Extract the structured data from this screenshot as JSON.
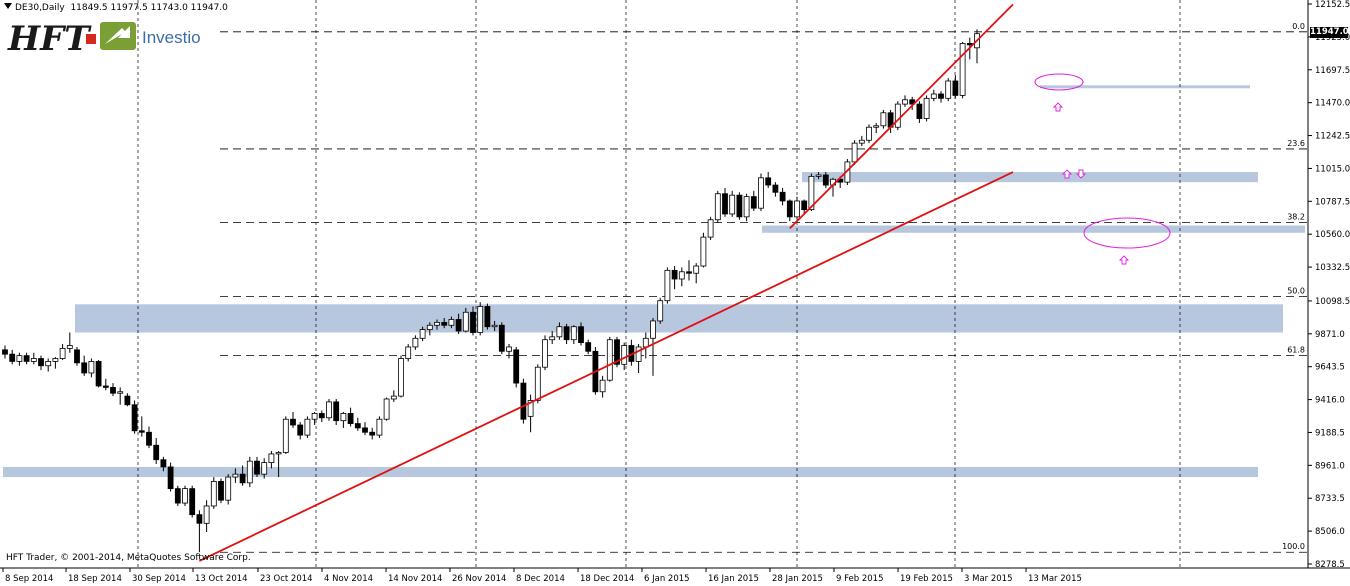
{
  "header": {
    "symbol": "DE30,Daily",
    "ohlc": "11849.5 11977.5 11743.0 11947.0"
  },
  "logo": {
    "brand": "HFT",
    "name": "Investio"
  },
  "copyright": "HFT Trader, © 2001-2014, MetaQuotes Software Corp.",
  "current_price": "11947.0",
  "colors": {
    "zone": "#b7c7de",
    "trendline": "#e01010",
    "ellipse": "#e020e0",
    "grid": "#000000",
    "bull_body": "#ffffff",
    "bear_body": "#000000"
  },
  "chart_data": {
    "type": "candlestick",
    "instrument": "DE30",
    "timeframe": "Daily",
    "ylim": [
      8280,
      12150
    ],
    "y_ticks": [
      "12152.5",
      "11925.0",
      "11697.5",
      "11470.0",
      "11242.5",
      "11015.0",
      "10787.5",
      "10560.0",
      "10332.5",
      "10098.5",
      "9871.0",
      "9643.5",
      "9416.0",
      "9188.5",
      "8961.0",
      "8733.5",
      "8506.0",
      "8278.5"
    ],
    "x_ticks": [
      "8 Sep 2014",
      "18 Sep 2014",
      "30 Sep 2014",
      "13 Oct 2014",
      "23 Oct 2014",
      "4 Nov 2014",
      "14 Nov 2014",
      "26 Nov 2014",
      "8 Dec 2014",
      "18 Dec 2014",
      "6 Jan 2015",
      "16 Jan 2015",
      "28 Jan 2015",
      "9 Feb 2015",
      "19 Feb 2015",
      "3 Mar 2015",
      "13 Mar 2015"
    ],
    "fib_levels": [
      {
        "label": "0.0",
        "price": 11960
      },
      {
        "label": "23.6",
        "price": 11150
      },
      {
        "label": "38.2",
        "price": 10640
      },
      {
        "label": "50.0",
        "price": 10130
      },
      {
        "label": "61.8",
        "price": 9720
      },
      {
        "label": "100.0",
        "price": 8360
      }
    ],
    "zones": [
      {
        "from": 9880,
        "to": 10075
      },
      {
        "from": 10920,
        "to": 10990
      },
      {
        "from": 10570,
        "to": 10620
      },
      {
        "from": 8880,
        "to": 8950
      },
      {
        "from": 11570,
        "to": 11590
      }
    ],
    "candles": [
      {
        "d": "2014-09-08",
        "o": 9760,
        "h": 9790,
        "l": 9700,
        "c": 9730
      },
      {
        "d": "2014-09-09",
        "o": 9730,
        "h": 9760,
        "l": 9660,
        "c": 9680
      },
      {
        "d": "2014-09-10",
        "o": 9680,
        "h": 9740,
        "l": 9650,
        "c": 9720
      },
      {
        "d": "2014-09-11",
        "o": 9720,
        "h": 9740,
        "l": 9660,
        "c": 9680
      },
      {
        "d": "2014-09-12",
        "o": 9680,
        "h": 9740,
        "l": 9660,
        "c": 9700
      },
      {
        "d": "2014-09-15",
        "o": 9700,
        "h": 9720,
        "l": 9620,
        "c": 9650
      },
      {
        "d": "2014-09-16",
        "o": 9650,
        "h": 9700,
        "l": 9610,
        "c": 9680
      },
      {
        "d": "2014-09-17",
        "o": 9680,
        "h": 9710,
        "l": 9630,
        "c": 9700
      },
      {
        "d": "2014-09-18",
        "o": 9700,
        "h": 9800,
        "l": 9690,
        "c": 9770
      },
      {
        "d": "2014-09-19",
        "o": 9770,
        "h": 9880,
        "l": 9740,
        "c": 9790
      },
      {
        "d": "2014-09-22",
        "o": 9760,
        "h": 9780,
        "l": 9650,
        "c": 9670
      },
      {
        "d": "2014-09-23",
        "o": 9670,
        "h": 9720,
        "l": 9580,
        "c": 9600
      },
      {
        "d": "2014-09-24",
        "o": 9600,
        "h": 9700,
        "l": 9570,
        "c": 9680
      },
      {
        "d": "2014-09-25",
        "o": 9680,
        "h": 9690,
        "l": 9500,
        "c": 9510
      },
      {
        "d": "2014-09-26",
        "o": 9510,
        "h": 9560,
        "l": 9480,
        "c": 9500
      },
      {
        "d": "2014-09-29",
        "o": 9500,
        "h": 9530,
        "l": 9440,
        "c": 9460
      },
      {
        "d": "2014-09-30",
        "o": 9460,
        "h": 9500,
        "l": 9380,
        "c": 9470
      },
      {
        "d": "2014-10-01",
        "o": 9440,
        "h": 9460,
        "l": 9370,
        "c": 9380
      },
      {
        "d": "2014-10-02",
        "o": 9380,
        "h": 9410,
        "l": 9180,
        "c": 9200
      },
      {
        "d": "2014-10-03",
        "o": 9200,
        "h": 9300,
        "l": 9160,
        "c": 9190
      },
      {
        "d": "2014-10-06",
        "o": 9190,
        "h": 9230,
        "l": 9080,
        "c": 9100
      },
      {
        "d": "2014-10-07",
        "o": 9100,
        "h": 9150,
        "l": 8970,
        "c": 9000
      },
      {
        "d": "2014-10-08",
        "o": 9000,
        "h": 9020,
        "l": 8920,
        "c": 8950
      },
      {
        "d": "2014-10-09",
        "o": 8950,
        "h": 8980,
        "l": 8780,
        "c": 8800
      },
      {
        "d": "2014-10-10",
        "o": 8800,
        "h": 8820,
        "l": 8680,
        "c": 8700
      },
      {
        "d": "2014-10-13",
        "o": 8700,
        "h": 8820,
        "l": 8680,
        "c": 8800
      },
      {
        "d": "2014-10-14",
        "o": 8800,
        "h": 8820,
        "l": 8600,
        "c": 8620
      },
      {
        "d": "2014-10-15",
        "o": 8620,
        "h": 8650,
        "l": 8360,
        "c": 8560
      },
      {
        "d": "2014-10-16",
        "o": 8560,
        "h": 8720,
        "l": 8500,
        "c": 8680
      },
      {
        "d": "2014-10-17",
        "o": 8680,
        "h": 8880,
        "l": 8660,
        "c": 8850
      },
      {
        "d": "2014-10-20",
        "o": 8850,
        "h": 8870,
        "l": 8700,
        "c": 8720
      },
      {
        "d": "2014-10-21",
        "o": 8720,
        "h": 8900,
        "l": 8690,
        "c": 8880
      },
      {
        "d": "2014-10-22",
        "o": 8880,
        "h": 8940,
        "l": 8840,
        "c": 8900
      },
      {
        "d": "2014-10-23",
        "o": 8900,
        "h": 8960,
        "l": 8820,
        "c": 8840
      },
      {
        "d": "2014-10-24",
        "o": 8840,
        "h": 9020,
        "l": 8810,
        "c": 8990
      },
      {
        "d": "2014-10-27",
        "o": 8990,
        "h": 9020,
        "l": 8880,
        "c": 8900
      },
      {
        "d": "2014-10-28",
        "o": 8900,
        "h": 9010,
        "l": 8870,
        "c": 8980
      },
      {
        "d": "2014-10-29",
        "o": 8980,
        "h": 9060,
        "l": 8940,
        "c": 9040
      },
      {
        "d": "2014-10-30",
        "o": 9040,
        "h": 9060,
        "l": 8880,
        "c": 9050
      },
      {
        "d": "2014-10-31",
        "o": 9050,
        "h": 9300,
        "l": 9040,
        "c": 9280
      },
      {
        "d": "2014-11-03",
        "o": 9280,
        "h": 9330,
        "l": 9220,
        "c": 9240
      },
      {
        "d": "2014-11-04",
        "o": 9240,
        "h": 9260,
        "l": 9140,
        "c": 9170
      },
      {
        "d": "2014-11-05",
        "o": 9170,
        "h": 9300,
        "l": 9150,
        "c": 9280
      },
      {
        "d": "2014-11-06",
        "o": 9280,
        "h": 9330,
        "l": 9240,
        "c": 9320
      },
      {
        "d": "2014-11-07",
        "o": 9320,
        "h": 9340,
        "l": 9260,
        "c": 9290
      },
      {
        "d": "2014-11-10",
        "o": 9290,
        "h": 9420,
        "l": 9270,
        "c": 9400
      },
      {
        "d": "2014-11-11",
        "o": 9400,
        "h": 9420,
        "l": 9240,
        "c": 9270
      },
      {
        "d": "2014-11-12",
        "o": 9270,
        "h": 9330,
        "l": 9220,
        "c": 9320
      },
      {
        "d": "2014-11-13",
        "o": 9320,
        "h": 9360,
        "l": 9230,
        "c": 9250
      },
      {
        "d": "2014-11-14",
        "o": 9250,
        "h": 9290,
        "l": 9200,
        "c": 9220
      },
      {
        "d": "2014-11-17",
        "o": 9220,
        "h": 9260,
        "l": 9170,
        "c": 9190
      },
      {
        "d": "2014-11-18",
        "o": 9190,
        "h": 9220,
        "l": 9140,
        "c": 9170
      },
      {
        "d": "2014-11-19",
        "o": 9170,
        "h": 9300,
        "l": 9150,
        "c": 9280
      },
      {
        "d": "2014-11-20",
        "o": 9280,
        "h": 9430,
        "l": 9270,
        "c": 9420
      },
      {
        "d": "2014-11-21",
        "o": 9420,
        "h": 9480,
        "l": 9400,
        "c": 9440
      },
      {
        "d": "2014-11-24",
        "o": 9440,
        "h": 9720,
        "l": 9430,
        "c": 9700
      },
      {
        "d": "2014-11-25",
        "o": 9700,
        "h": 9800,
        "l": 9680,
        "c": 9780
      },
      {
        "d": "2014-11-26",
        "o": 9780,
        "h": 9860,
        "l": 9760,
        "c": 9840
      },
      {
        "d": "2014-11-27",
        "o": 9840,
        "h": 9920,
        "l": 9820,
        "c": 9900
      },
      {
        "d": "2014-11-28",
        "o": 9900,
        "h": 9950,
        "l": 9860,
        "c": 9930
      },
      {
        "d": "2014-12-01",
        "o": 9930,
        "h": 9970,
        "l": 9900,
        "c": 9950
      },
      {
        "d": "2014-12-02",
        "o": 9950,
        "h": 9980,
        "l": 9910,
        "c": 9930
      },
      {
        "d": "2014-12-03",
        "o": 9930,
        "h": 9990,
        "l": 9910,
        "c": 9970
      },
      {
        "d": "2014-12-04",
        "o": 9970,
        "h": 10010,
        "l": 9870,
        "c": 9890
      },
      {
        "d": "2014-12-05",
        "o": 9890,
        "h": 10050,
        "l": 9880,
        "c": 10020
      },
      {
        "d": "2014-12-08",
        "o": 10020,
        "h": 10060,
        "l": 9860,
        "c": 9880
      },
      {
        "d": "2014-12-09",
        "o": 9880,
        "h": 10090,
        "l": 9860,
        "c": 10060
      },
      {
        "d": "2014-12-10",
        "o": 10060,
        "h": 10080,
        "l": 9900,
        "c": 9920
      },
      {
        "d": "2014-12-11",
        "o": 9920,
        "h": 9960,
        "l": 9890,
        "c": 9930
      },
      {
        "d": "2014-12-12",
        "o": 9930,
        "h": 9950,
        "l": 9730,
        "c": 9750
      },
      {
        "d": "2014-12-15",
        "o": 9750,
        "h": 9800,
        "l": 9700,
        "c": 9780
      },
      {
        "d": "2014-12-16",
        "o": 9760,
        "h": 9780,
        "l": 9500,
        "c": 9530
      },
      {
        "d": "2014-12-17",
        "o": 9530,
        "h": 9560,
        "l": 9250,
        "c": 9280
      },
      {
        "d": "2014-12-18",
        "o": 9300,
        "h": 9450,
        "l": 9190,
        "c": 9410
      },
      {
        "d": "2014-12-19",
        "o": 9410,
        "h": 9660,
        "l": 9390,
        "c": 9640
      },
      {
        "d": "2014-12-22",
        "o": 9640,
        "h": 9860,
        "l": 9620,
        "c": 9830
      },
      {
        "d": "2014-12-23",
        "o": 9830,
        "h": 9890,
        "l": 9800,
        "c": 9850
      },
      {
        "d": "2014-12-24",
        "o": 9850,
        "h": 9950,
        "l": 9830,
        "c": 9920
      },
      {
        "d": "2014-12-29",
        "o": 9920,
        "h": 9940,
        "l": 9800,
        "c": 9830
      },
      {
        "d": "2014-12-30",
        "o": 9830,
        "h": 9930,
        "l": 9800,
        "c": 9920
      },
      {
        "d": "2015-01-02",
        "o": 9920,
        "h": 9950,
        "l": 9790,
        "c": 9810
      },
      {
        "d": "2015-01-05",
        "o": 9810,
        "h": 9830,
        "l": 9730,
        "c": 9750
      },
      {
        "d": "2015-01-06",
        "o": 9750,
        "h": 9780,
        "l": 9450,
        "c": 9470
      },
      {
        "d": "2015-01-07",
        "o": 9470,
        "h": 9580,
        "l": 9430,
        "c": 9550
      },
      {
        "d": "2015-01-08",
        "o": 9550,
        "h": 9850,
        "l": 9540,
        "c": 9830
      },
      {
        "d": "2015-01-09",
        "o": 9830,
        "h": 9850,
        "l": 9640,
        "c": 9660
      },
      {
        "d": "2015-01-12",
        "o": 9660,
        "h": 9810,
        "l": 9620,
        "c": 9790
      },
      {
        "d": "2015-01-13",
        "o": 9790,
        "h": 9830,
        "l": 9650,
        "c": 9680
      },
      {
        "d": "2015-01-14",
        "o": 9680,
        "h": 9800,
        "l": 9600,
        "c": 9780
      },
      {
        "d": "2015-01-15",
        "o": 9780,
        "h": 9880,
        "l": 9700,
        "c": 9840
      },
      {
        "d": "2015-01-16",
        "o": 9840,
        "h": 9980,
        "l": 9580,
        "c": 9960
      },
      {
        "d": "2015-01-19",
        "o": 9960,
        "h": 10120,
        "l": 9940,
        "c": 10100
      },
      {
        "d": "2015-01-20",
        "o": 10100,
        "h": 10330,
        "l": 10080,
        "c": 10310
      },
      {
        "d": "2015-01-21",
        "o": 10310,
        "h": 10340,
        "l": 10180,
        "c": 10250
      },
      {
        "d": "2015-01-22",
        "o": 10250,
        "h": 10330,
        "l": 10200,
        "c": 10300
      },
      {
        "d": "2015-01-23",
        "o": 10300,
        "h": 10380,
        "l": 10240,
        "c": 10290
      },
      {
        "d": "2015-01-26",
        "o": 10290,
        "h": 10360,
        "l": 10220,
        "c": 10340
      },
      {
        "d": "2015-01-27",
        "o": 10340,
        "h": 10570,
        "l": 10330,
        "c": 10540
      },
      {
        "d": "2015-01-28",
        "o": 10540,
        "h": 10680,
        "l": 10520,
        "c": 10660
      },
      {
        "d": "2015-01-29",
        "o": 10660,
        "h": 10860,
        "l": 10640,
        "c": 10840
      },
      {
        "d": "2015-01-30",
        "o": 10840,
        "h": 10880,
        "l": 10680,
        "c": 10700
      },
      {
        "d": "2015-02-02",
        "o": 10700,
        "h": 10860,
        "l": 10680,
        "c": 10830
      },
      {
        "d": "2015-02-03",
        "o": 10830,
        "h": 10850,
        "l": 10660,
        "c": 10680
      },
      {
        "d": "2015-02-04",
        "o": 10680,
        "h": 10840,
        "l": 10650,
        "c": 10820
      },
      {
        "d": "2015-02-05",
        "o": 10820,
        "h": 10860,
        "l": 10720,
        "c": 10740
      },
      {
        "d": "2015-02-06",
        "o": 10740,
        "h": 10980,
        "l": 10720,
        "c": 10950
      },
      {
        "d": "2015-02-09",
        "o": 10950,
        "h": 10990,
        "l": 10880,
        "c": 10900
      },
      {
        "d": "2015-02-10",
        "o": 10900,
        "h": 10920,
        "l": 10820,
        "c": 10850
      },
      {
        "d": "2015-02-11",
        "o": 10850,
        "h": 10880,
        "l": 10760,
        "c": 10790
      },
      {
        "d": "2015-02-12",
        "o": 10790,
        "h": 10800,
        "l": 10650,
        "c": 10680
      },
      {
        "d": "2015-02-13",
        "o": 10680,
        "h": 10820,
        "l": 10660,
        "c": 10790
      },
      {
        "d": "2015-02-16",
        "o": 10790,
        "h": 10800,
        "l": 10700,
        "c": 10730
      },
      {
        "d": "2015-02-17",
        "o": 10730,
        "h": 10980,
        "l": 10720,
        "c": 10960
      },
      {
        "d": "2015-02-18",
        "o": 10960,
        "h": 10990,
        "l": 10940,
        "c": 10970
      },
      {
        "d": "2015-02-19",
        "o": 10970,
        "h": 10990,
        "l": 10880,
        "c": 10900
      },
      {
        "d": "2015-02-20",
        "o": 10900,
        "h": 10950,
        "l": 10820,
        "c": 10940
      },
      {
        "d": "2015-02-23",
        "o": 10940,
        "h": 10960,
        "l": 10880,
        "c": 10920
      },
      {
        "d": "2015-02-24",
        "o": 10920,
        "h": 11080,
        "l": 10900,
        "c": 11060
      },
      {
        "d": "2015-02-25",
        "o": 11060,
        "h": 11210,
        "l": 11040,
        "c": 11190
      },
      {
        "d": "2015-02-26",
        "o": 11190,
        "h": 11240,
        "l": 11170,
        "c": 11210
      },
      {
        "d": "2015-02-27",
        "o": 11210,
        "h": 11320,
        "l": 11190,
        "c": 11300
      },
      {
        "d": "2015-03-02",
        "o": 11300,
        "h": 11330,
        "l": 11260,
        "c": 11310
      },
      {
        "d": "2015-03-03",
        "o": 11310,
        "h": 11420,
        "l": 11290,
        "c": 11400
      },
      {
        "d": "2015-03-04",
        "o": 11400,
        "h": 11420,
        "l": 11260,
        "c": 11300
      },
      {
        "d": "2015-03-05",
        "o": 11300,
        "h": 11480,
        "l": 11280,
        "c": 11460
      },
      {
        "d": "2015-03-06",
        "o": 11460,
        "h": 11520,
        "l": 11440,
        "c": 11490
      },
      {
        "d": "2015-03-09",
        "o": 11490,
        "h": 11510,
        "l": 11420,
        "c": 11460
      },
      {
        "d": "2015-03-10",
        "o": 11460,
        "h": 11480,
        "l": 11330,
        "c": 11360
      },
      {
        "d": "2015-03-11",
        "o": 11360,
        "h": 11520,
        "l": 11340,
        "c": 11500
      },
      {
        "d": "2015-03-12",
        "o": 11500,
        "h": 11560,
        "l": 11480,
        "c": 11530
      },
      {
        "d": "2015-03-13",
        "o": 11530,
        "h": 11550,
        "l": 11470,
        "c": 11500
      },
      {
        "d": "2015-03-16",
        "o": 11500,
        "h": 11640,
        "l": 11480,
        "c": 11620
      },
      {
        "d": "2015-03-17",
        "o": 11620,
        "h": 11660,
        "l": 11500,
        "c": 11520
      },
      {
        "d": "2015-03-18",
        "o": 11520,
        "h": 11890,
        "l": 11500,
        "c": 11880
      },
      {
        "d": "2015-03-19",
        "o": 11880,
        "h": 11920,
        "l": 11770,
        "c": 11870
      },
      {
        "d": "2015-03-20",
        "o": 11849.5,
        "h": 11977.5,
        "l": 11743,
        "c": 11947
      }
    ],
    "trendlines": [
      {
        "from": {
          "d": "2014-10-15",
          "p": 8300
        },
        "to": {
          "d": "2015-03-27",
          "p": 10990
        }
      },
      {
        "from": {
          "d": "2015-02-12",
          "p": 10600
        },
        "to": {
          "d": "2015-03-27",
          "p": 12150
        }
      }
    ]
  }
}
